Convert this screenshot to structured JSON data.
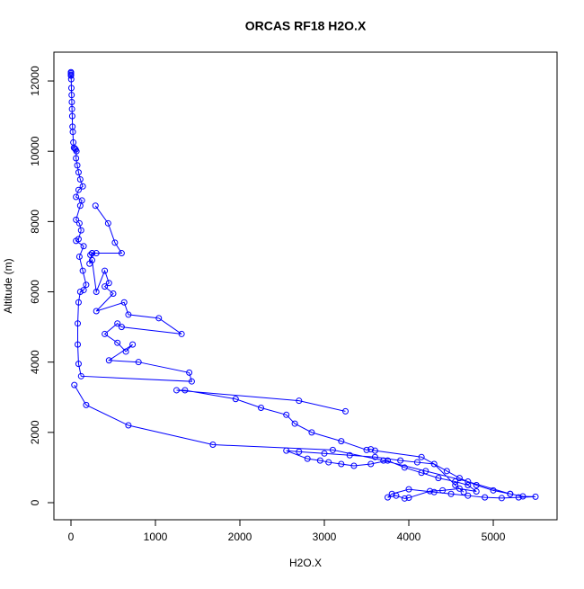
{
  "chart_data": {
    "type": "line",
    "title": "ORCAS RF18 H2O.X",
    "x_label": "H2O.X",
    "y_label": "Altitude (m)",
    "color": "#0000ff",
    "markers": true,
    "xlim": [
      -202,
      5755
    ],
    "ylim": [
      -486,
      12820
    ],
    "xticks": [
      0,
      1000,
      2000,
      3000,
      4000,
      5000
    ],
    "yticks": [
      0,
      2000,
      4000,
      6000,
      8000,
      10000,
      12000
    ],
    "x": [
      0,
      0,
      0,
      0,
      3,
      5,
      8,
      10,
      12,
      15,
      18,
      22,
      28,
      35,
      45,
      55,
      65,
      60,
      75,
      90,
      110,
      140,
      90,
      60,
      130,
      110,
      60,
      100,
      120,
      90,
      60,
      150,
      100,
      140,
      180,
      150,
      110,
      90,
      80,
      80,
      90,
      120,
      1430,
      1400,
      800,
      450,
      730,
      650,
      550,
      400,
      550,
      600,
      1310,
      1040,
      680,
      630,
      300,
      500,
      400,
      450,
      400,
      300,
      250,
      220,
      250,
      230,
      250,
      300,
      600,
      520,
      440,
      290,
      null,
      3250,
      2700,
      1250,
      1350,
      1950,
      2250,
      2550,
      2650,
      2850,
      3200,
      3500,
      3550,
      3600,
      4150,
      4450,
      4600,
      4800,
      5000,
      5200,
      5350,
      5500,
      5300,
      5100,
      4900,
      4700,
      4500,
      4300,
      4000,
      3800,
      3750,
      3850,
      3950,
      4000,
      4250,
      4400,
      4600,
      4800,
      4700,
      4550,
      4350,
      4150,
      3950,
      3750,
      3550,
      3350,
      3200,
      3050,
      2950,
      2800,
      2550,
      2700,
      3000,
      3300,
      3600,
      3900,
      4100,
      4300,
      4550,
      4650,
      null,
      40,
      180,
      680,
      1680,
      3100,
      3700,
      4200,
      4700,
      5200
    ],
    "values": [
      12250,
      12220,
      12180,
      12150,
      12050,
      11800,
      11600,
      11400,
      11200,
      11000,
      10700,
      10550,
      10250,
      10100,
      10080,
      10050,
      10000,
      9800,
      9600,
      9400,
      9200,
      9000,
      8900,
      8700,
      8600,
      8450,
      8050,
      7950,
      7750,
      7500,
      7450,
      7300,
      7000,
      6600,
      6200,
      6050,
      6000,
      5700,
      5100,
      4500,
      3950,
      3600,
      3450,
      3700,
      4000,
      4050,
      4500,
      4300,
      4550,
      4800,
      5100,
      5000,
      4800,
      5250,
      5350,
      5700,
      5450,
      5950,
      6150,
      6250,
      6600,
      6000,
      6900,
      6800,
      7100,
      7050,
      7100,
      7100,
      7100,
      7400,
      7950,
      8450,
      null,
      2600,
      2900,
      3200,
      3200,
      2950,
      2700,
      2500,
      2250,
      2000,
      1750,
      1500,
      1520,
      1480,
      1300,
      900,
      700,
      500,
      350,
      250,
      180,
      170,
      150,
      130,
      150,
      200,
      250,
      300,
      380,
      250,
      150,
      200,
      120,
      140,
      330,
      350,
      400,
      320,
      500,
      600,
      700,
      850,
      1000,
      1200,
      1100,
      1050,
      1100,
      1150,
      1200,
      1250,
      1480,
      1450,
      1400,
      1350,
      1300,
      1200,
      1150,
      1100,
      500,
      300,
      null,
      3350,
      2780,
      2200,
      1650,
      1500,
      1200,
      900,
      600,
      250
    ]
  }
}
